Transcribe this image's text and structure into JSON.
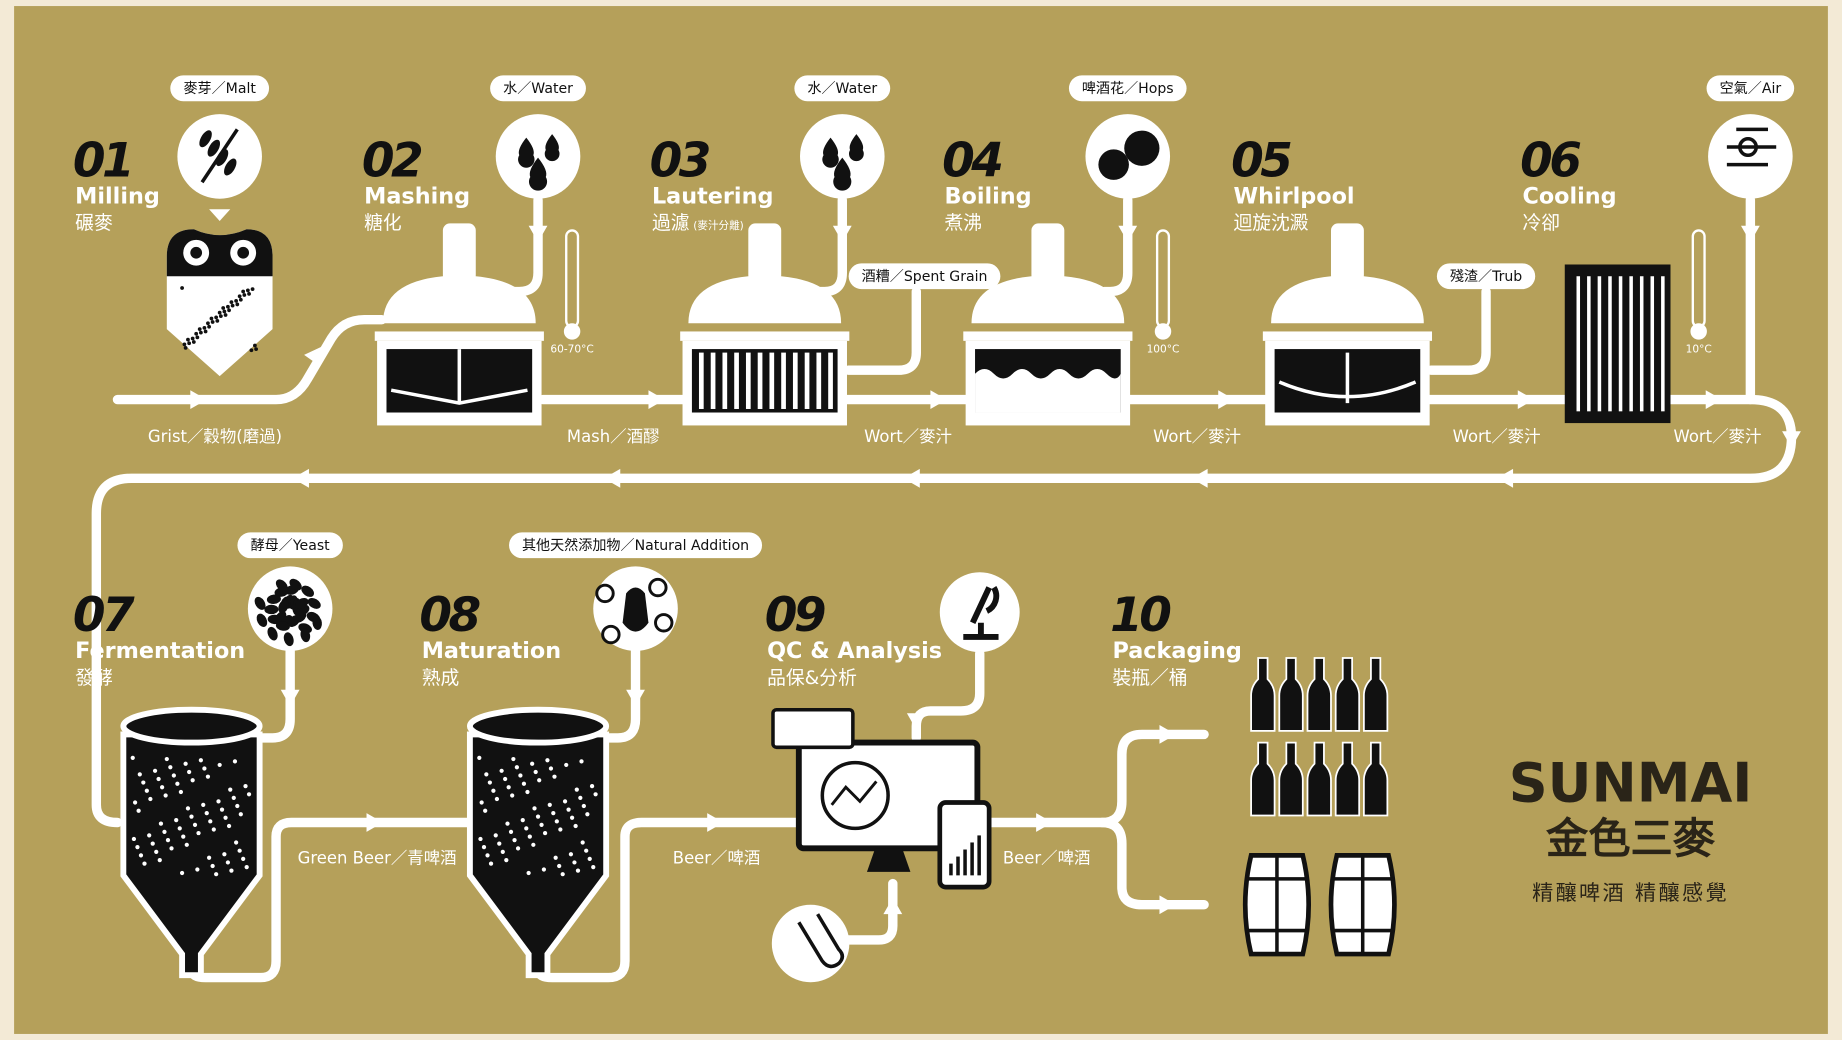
{
  "steps": [
    {
      "number": "01",
      "name": "Milling",
      "name_zh": "碾麥"
    },
    {
      "number": "02",
      "name": "Mashing",
      "name_zh": "糖化"
    },
    {
      "number": "03",
      "name": "Lautering",
      "name_zh": "過濾",
      "note": "(麥汁分離)"
    },
    {
      "number": "04",
      "name": "Boiling",
      "name_zh": "煮沸"
    },
    {
      "number": "05",
      "name": "Whirlpool",
      "name_zh": "迴旋沈澱"
    },
    {
      "number": "06",
      "name": "Cooling",
      "name_zh": "冷卻"
    },
    {
      "number": "07",
      "name": "Fermentation",
      "name_zh": "發酵"
    },
    {
      "number": "08",
      "name": "Maturation",
      "name_zh": "熟成"
    },
    {
      "number": "09",
      "name": "QC & Analysis",
      "name_zh": "品保&分析"
    },
    {
      "number": "10",
      "name": "Packaging",
      "name_zh": "裝瓶／桶"
    }
  ],
  "inputs": [
    "麥芽／Malt",
    "水／Water",
    "水／Water",
    "啤酒花／Hops",
    "空氣／Air",
    "酵母／Yeast",
    "其他天然添加物／Natural Addition"
  ],
  "outputs": [
    "酒糟／Spent Grain",
    "殘渣／Trub"
  ],
  "temperatures": [
    "60-70°C",
    "100°C",
    "10°C"
  ],
  "flows": [
    "Grist／穀物(磨過)",
    "Mash／酒醪",
    "Wort／麥汁",
    "Wort／麥汁",
    "Wort／麥汁",
    "Wort／麥汁",
    "Green Beer／青啤酒",
    "Beer／啤酒",
    "Beer／啤酒"
  ],
  "brand": {
    "name": "SUNMAI",
    "name_zh": "金色三麥",
    "slogan": "精釀啤酒 精釀感覺"
  }
}
